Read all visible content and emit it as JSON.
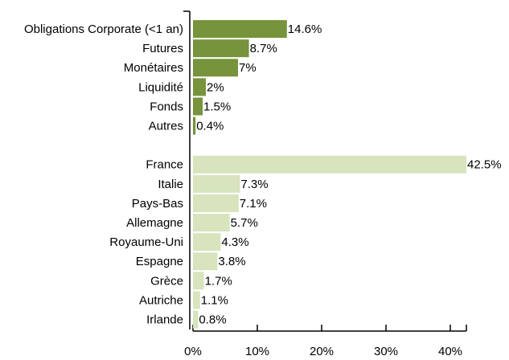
{
  "chart_data": {
    "type": "hbar",
    "categories": [
      "Obligations Corporate (<1 an)",
      "Futures",
      "Monétaires",
      "Liquidité",
      "Fonds",
      "Autres",
      null,
      "France",
      "Italie",
      "Pays-Bas",
      "Allemagne",
      "Royaume-Uni",
      "Espagne",
      "Grèce",
      "Autriche",
      "Irlande"
    ],
    "series": [
      {
        "color": "#77933c",
        "values": [
          14.6,
          8.7,
          7,
          2,
          1.5,
          0.4,
          null,
          null,
          null,
          null,
          null,
          null,
          null,
          null,
          null,
          null
        ],
        "value_labels": [
          "14.6%",
          "8.7%",
          "7%",
          "2%",
          "1.5%",
          "0.4%",
          null,
          null,
          null,
          null,
          null,
          null,
          null,
          null,
          null,
          null
        ]
      },
      {
        "color": "#d7e4bd",
        "values": [
          null,
          null,
          null,
          null,
          null,
          null,
          null,
          42.5,
          7.3,
          7.1,
          5.7,
          4.3,
          3.8,
          1.7,
          1.1,
          0.8
        ],
        "value_labels": [
          null,
          null,
          null,
          null,
          null,
          null,
          null,
          "42.5%",
          "7.3%",
          "7.1%",
          "5.7%",
          "4.3%",
          "3.8%",
          "1.7%",
          "1.1%",
          "0.8%"
        ]
      }
    ],
    "xlim": [
      0,
      42.5
    ],
    "xticks": [
      {
        "value": 0,
        "label": "0%"
      },
      {
        "value": 10,
        "label": "10%"
      },
      {
        "value": 20,
        "label": "20%"
      },
      {
        "value": 30,
        "label": "30%"
      },
      {
        "value": 40,
        "label": "40%"
      }
    ]
  }
}
